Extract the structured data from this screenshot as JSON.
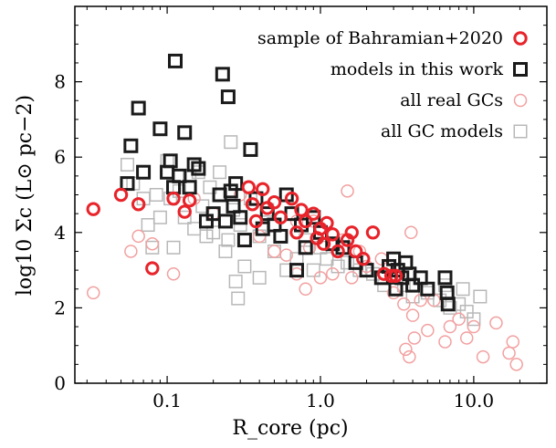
{
  "chart_data": {
    "type": "scatter",
    "xlabel": "R_core (pc)",
    "ylabel": "log10 Σc (L⊙ pc−2)",
    "xscale": "log",
    "xlim": [
      0.025,
      30
    ],
    "ylim": [
      0,
      10
    ],
    "xticks": [
      {
        "value": 0.1,
        "label": "0.1"
      },
      {
        "value": 1.0,
        "label": "1.0"
      },
      {
        "value": 10.0,
        "label": "10.0"
      }
    ],
    "yticks": [
      {
        "value": 0,
        "label": "0"
      },
      {
        "value": 2,
        "label": "2"
      },
      {
        "value": 4,
        "label": "4"
      },
      {
        "value": 6,
        "label": "6"
      },
      {
        "value": 8,
        "label": "8"
      }
    ],
    "grid": false,
    "legend_position": "top-right",
    "legend": [
      {
        "label": "sample of Bahramian+2020",
        "marker": "circle",
        "color": "#e8232a",
        "style": "bold"
      },
      {
        "label": "models in this work",
        "marker": "square",
        "color": "#1a1a1a",
        "style": "bold"
      },
      {
        "label": "all real GCs",
        "marker": "circle",
        "color": "#f2a0a0",
        "style": "light"
      },
      {
        "label": "all GC models",
        "marker": "square",
        "color": "#b8b8b8",
        "style": "light"
      }
    ],
    "series": [
      {
        "name": "all GC models",
        "marker": "square",
        "color": "#b8b8b8",
        "style": "light",
        "points": [
          [
            0.055,
            5.8
          ],
          [
            0.06,
            5.3
          ],
          [
            0.07,
            4.9
          ],
          [
            0.075,
            4.2
          ],
          [
            0.08,
            3.6
          ],
          [
            0.085,
            5.0
          ],
          [
            0.09,
            4.4
          ],
          [
            0.1,
            5.9
          ],
          [
            0.105,
            4.9
          ],
          [
            0.11,
            3.6
          ],
          [
            0.12,
            5.1
          ],
          [
            0.13,
            4.4
          ],
          [
            0.14,
            5.5
          ],
          [
            0.15,
            4.1
          ],
          [
            0.16,
            5.6
          ],
          [
            0.17,
            4.7
          ],
          [
            0.18,
            3.9
          ],
          [
            0.19,
            5.2
          ],
          [
            0.2,
            4.0
          ],
          [
            0.22,
            5.6
          ],
          [
            0.24,
            3.5
          ],
          [
            0.26,
            6.4
          ],
          [
            0.27,
            4.6
          ],
          [
            0.28,
            2.7
          ],
          [
            0.3,
            4.2
          ],
          [
            0.32,
            3.1
          ],
          [
            0.35,
            4.9
          ],
          [
            0.4,
            3.9
          ],
          [
            0.45,
            4.6
          ],
          [
            0.5,
            3.5
          ],
          [
            0.55,
            3.9
          ],
          [
            0.6,
            3.0
          ],
          [
            0.7,
            3.3
          ],
          [
            0.8,
            3.8
          ],
          [
            0.9,
            3.0
          ],
          [
            1.0,
            3.6
          ],
          [
            1.1,
            3.3
          ],
          [
            1.3,
            3.1
          ],
          [
            1.5,
            3.2
          ],
          [
            1.8,
            3.0
          ],
          [
            2.2,
            2.9
          ],
          [
            2.6,
            2.6
          ],
          [
            3.0,
            2.8
          ],
          [
            3.5,
            2.6
          ],
          [
            4.0,
            2.3
          ],
          [
            5.0,
            2.4
          ],
          [
            6.0,
            2.2
          ],
          [
            7.0,
            2.0
          ],
          [
            8.0,
            2.1
          ],
          [
            9.0,
            1.9
          ],
          [
            10.0,
            1.7
          ],
          [
            11.0,
            2.3
          ],
          [
            8.5,
            2.5
          ],
          [
            6.5,
            2.6
          ],
          [
            0.29,
            2.25
          ],
          [
            0.4,
            2.8
          ],
          [
            0.25,
            3.8
          ]
        ]
      },
      {
        "name": "all real GCs",
        "marker": "circle",
        "color": "#f2a0a0",
        "style": "light",
        "points": [
          [
            0.033,
            2.4
          ],
          [
            0.058,
            3.5
          ],
          [
            0.065,
            3.9
          ],
          [
            0.08,
            3.7
          ],
          [
            0.11,
            2.9
          ],
          [
            0.15,
            4.9
          ],
          [
            0.2,
            4.5
          ],
          [
            0.3,
            5.0
          ],
          [
            0.4,
            3.9
          ],
          [
            0.5,
            3.5
          ],
          [
            0.6,
            3.4
          ],
          [
            0.7,
            2.9
          ],
          [
            0.8,
            2.5
          ],
          [
            0.85,
            3.6
          ],
          [
            1.0,
            2.8
          ],
          [
            1.2,
            2.9
          ],
          [
            1.4,
            3.8
          ],
          [
            1.6,
            2.8
          ],
          [
            1.8,
            3.5
          ],
          [
            2.0,
            3.1
          ],
          [
            2.5,
            3.3
          ],
          [
            3.0,
            2.4
          ],
          [
            3.5,
            2.1
          ],
          [
            4.0,
            1.8
          ],
          [
            4.5,
            2.2
          ],
          [
            5.0,
            1.4
          ],
          [
            5.5,
            2.2
          ],
          [
            6.5,
            1.1
          ],
          [
            7.0,
            1.5
          ],
          [
            8.0,
            1.7
          ],
          [
            9.0,
            1.2
          ],
          [
            10.0,
            1.5
          ],
          [
            11.5,
            0.7
          ],
          [
            14.0,
            1.6
          ],
          [
            17.0,
            0.8
          ],
          [
            18.0,
            1.1
          ],
          [
            19.0,
            0.5
          ],
          [
            3.6,
            0.9
          ],
          [
            3.8,
            0.7
          ],
          [
            4.1,
            1.2
          ],
          [
            1.5,
            5.1
          ],
          [
            0.9,
            4.3
          ],
          [
            3.9,
            4.0
          ],
          [
            0.7,
            4.3
          ]
        ]
      },
      {
        "name": "models in this work",
        "marker": "square",
        "color": "#1a1a1a",
        "style": "bold",
        "points": [
          [
            0.055,
            5.3
          ],
          [
            0.058,
            6.3
          ],
          [
            0.065,
            7.3
          ],
          [
            0.07,
            5.6
          ],
          [
            0.09,
            6.75
          ],
          [
            0.1,
            5.6
          ],
          [
            0.105,
            5.9
          ],
          [
            0.11,
            5.2
          ],
          [
            0.113,
            8.55
          ],
          [
            0.12,
            5.5
          ],
          [
            0.13,
            6.65
          ],
          [
            0.14,
            5.2
          ],
          [
            0.15,
            5.8
          ],
          [
            0.16,
            5.7
          ],
          [
            0.18,
            4.3
          ],
          [
            0.2,
            4.5
          ],
          [
            0.22,
            5.0
          ],
          [
            0.23,
            8.2
          ],
          [
            0.24,
            4.3
          ],
          [
            0.25,
            7.6
          ],
          [
            0.26,
            5.1
          ],
          [
            0.28,
            5.3
          ],
          [
            0.3,
            4.4
          ],
          [
            0.32,
            3.8
          ],
          [
            0.35,
            6.2
          ],
          [
            0.38,
            4.9
          ],
          [
            0.42,
            4.1
          ],
          [
            0.45,
            4.5
          ],
          [
            0.5,
            4.2
          ],
          [
            0.55,
            3.9
          ],
          [
            0.6,
            5.0
          ],
          [
            0.65,
            4.5
          ],
          [
            0.7,
            3.0
          ],
          [
            0.75,
            4.2
          ],
          [
            0.8,
            3.6
          ],
          [
            0.9,
            4.4
          ],
          [
            1.0,
            4.0
          ],
          [
            1.2,
            3.7
          ],
          [
            1.4,
            3.6
          ],
          [
            1.7,
            3.2
          ],
          [
            2.0,
            3.0
          ],
          [
            2.5,
            2.8
          ],
          [
            2.8,
            3.1
          ],
          [
            3.0,
            3.3
          ],
          [
            3.2,
            3.0
          ],
          [
            3.4,
            2.8
          ],
          [
            3.6,
            3.2
          ],
          [
            3.8,
            2.9
          ],
          [
            4.0,
            2.6
          ],
          [
            4.5,
            2.8
          ],
          [
            5.0,
            2.5
          ],
          [
            6.5,
            2.8
          ],
          [
            6.7,
            2.4
          ],
          [
            6.8,
            2.1
          ],
          [
            3.1,
            2.5
          ],
          [
            0.27,
            4.7
          ]
        ]
      },
      {
        "name": "sample of Bahramian+2020",
        "marker": "circle",
        "color": "#e8232a",
        "style": "bold",
        "points": [
          [
            0.033,
            4.62
          ],
          [
            0.05,
            5.0
          ],
          [
            0.065,
            4.75
          ],
          [
            0.08,
            3.05
          ],
          [
            0.11,
            4.9
          ],
          [
            0.13,
            4.55
          ],
          [
            0.14,
            4.85
          ],
          [
            0.34,
            5.2
          ],
          [
            0.36,
            4.75
          ],
          [
            0.38,
            4.3
          ],
          [
            0.42,
            5.15
          ],
          [
            0.45,
            4.65
          ],
          [
            0.5,
            4.8
          ],
          [
            0.55,
            4.4
          ],
          [
            0.65,
            4.9
          ],
          [
            0.7,
            4.0
          ],
          [
            0.75,
            4.6
          ],
          [
            0.8,
            4.3
          ],
          [
            0.9,
            4.5
          ],
          [
            1.0,
            4.1
          ],
          [
            1.05,
            3.7
          ],
          [
            1.1,
            4.25
          ],
          [
            1.2,
            3.95
          ],
          [
            1.3,
            3.5
          ],
          [
            1.5,
            3.8
          ],
          [
            1.7,
            3.5
          ],
          [
            1.9,
            3.3
          ],
          [
            2.2,
            4.0
          ],
          [
            2.6,
            2.9
          ],
          [
            2.9,
            2.85
          ],
          [
            3.1,
            2.85
          ],
          [
            1.6,
            4.0
          ],
          [
            0.95,
            3.85
          ]
        ]
      }
    ]
  }
}
